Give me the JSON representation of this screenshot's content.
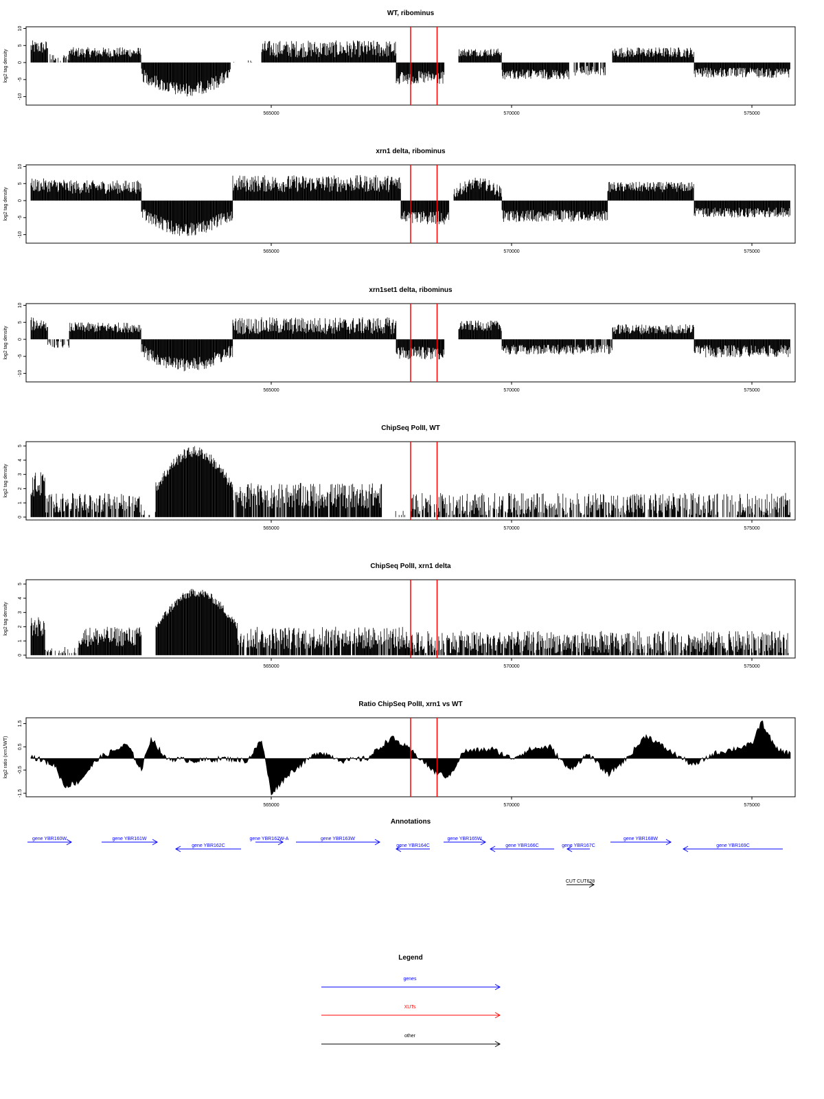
{
  "panels": [
    {
      "title": "WT, ribominus",
      "ylabel": "log2 tag density",
      "yticks": [
        "10",
        "5",
        "0",
        "-5",
        "-10"
      ],
      "xticks": [
        "565000",
        "570000",
        "575000"
      ]
    },
    {
      "title": "xrn1 delta, ribominus",
      "ylabel": "log2 tag density",
      "yticks": [
        "10",
        "5",
        "0",
        "-5",
        "-10"
      ],
      "xticks": [
        "565000",
        "570000",
        "575000"
      ]
    },
    {
      "title": "xrn1set1 delta, ribominus",
      "ylabel": "log2 tag density",
      "yticks": [
        "10",
        "5",
        "0",
        "-5",
        "-10"
      ],
      "xticks": [
        "565000",
        "570000",
        "575000"
      ]
    },
    {
      "title": "ChipSeq PolII, WT",
      "ylabel": "log2 tag density",
      "yticks": [
        "5",
        "4",
        "3",
        "2",
        "1",
        "0"
      ],
      "xticks": [
        "565000",
        "570000",
        "575000"
      ]
    },
    {
      "title": "ChipSeq PolII, xrn1 delta",
      "ylabel": "log2 tag density",
      "yticks": [
        "5",
        "4",
        "3",
        "2",
        "1",
        "0"
      ],
      "xticks": [
        "565000",
        "570000",
        "575000"
      ]
    },
    {
      "title": "Ratio ChipSeq PolII, xrn1 vs WT",
      "ylabel": "log2 ratio (xrn1/WT)",
      "yticks": [
        "1.5",
        "0.5",
        "-0.5",
        "-1.5"
      ],
      "xticks": [
        "565000",
        "570000",
        "575000"
      ]
    }
  ],
  "annotations": {
    "title": "Annotations",
    "genes": [
      {
        "label": "gene YBR160W"
      },
      {
        "label": "gene YBR161W"
      },
      {
        "label": "gene YBR162C"
      },
      {
        "label": "gene YBR162W-A"
      },
      {
        "label": "gene YBR163W"
      },
      {
        "label": "gene YBR164C"
      },
      {
        "label": "gene YBR165W"
      },
      {
        "label": "gene YBR166C"
      },
      {
        "label": "gene YBR167C"
      },
      {
        "label": "gene YBR168W"
      },
      {
        "label": "gene YBR169C"
      }
    ],
    "other": [
      {
        "label": "CUT CUT628"
      }
    ]
  },
  "legend": {
    "title": "Legend",
    "items": [
      {
        "label": "genes",
        "color": "#0000ff"
      },
      {
        "label": "XUTs",
        "color": "#ff0000"
      },
      {
        "label": "other",
        "color": "#000000"
      }
    ]
  },
  "colors": {
    "data": "#000000",
    "marker": "#ff0000",
    "gene": "#0000ff",
    "other": "#000000"
  },
  "chart_data": [
    {
      "type": "bar",
      "title": "WT, ribominus",
      "ylabel": "log2 tag density",
      "xlim": [
        559900,
        575900
      ],
      "ylim": [
        -12.5,
        10.5
      ],
      "marker_lines": [
        567900,
        568450
      ],
      "segments": [
        {
          "x0": 560000,
          "x1": 560350,
          "sign": 1,
          "amp": 4.5,
          "noise": 2.0
        },
        {
          "x0": 560350,
          "x1": 560800,
          "sign": 1,
          "amp": 1.5,
          "noise": 1.0,
          "sparse": 0.5
        },
        {
          "x0": 560800,
          "x1": 562300,
          "sign": 1,
          "amp": 3.0,
          "noise": 1.5
        },
        {
          "x0": 562300,
          "x1": 564150,
          "sign": -1,
          "amp": 8.0,
          "noise": 2.0,
          "shape": "arch"
        },
        {
          "x0": 564150,
          "x1": 564800,
          "sign": 1,
          "amp": 0.3,
          "noise": 0.5,
          "sparse": 0.9
        },
        {
          "x0": 564800,
          "x1": 567600,
          "sign": 1,
          "amp": 4.0,
          "noise": 2.5
        },
        {
          "x0": 567600,
          "x1": 568600,
          "sign": -1,
          "amp": 4.5,
          "noise": 2.0
        },
        {
          "x0": 568900,
          "x1": 569800,
          "sign": 1,
          "amp": 3.0,
          "noise": 1.2
        },
        {
          "x0": 569800,
          "x1": 571200,
          "sign": -1,
          "amp": 3.5,
          "noise": 1.5
        },
        {
          "x0": 571300,
          "x1": 571950,
          "sign": -1,
          "amp": 2.5,
          "noise": 1.5,
          "sparse": 0.3
        },
        {
          "x0": 572100,
          "x1": 573800,
          "sign": 1,
          "amp": 3.0,
          "noise": 1.5
        },
        {
          "x0": 573800,
          "x1": 575800,
          "sign": -1,
          "amp": 3.0,
          "noise": 1.5
        }
      ]
    },
    {
      "type": "bar",
      "title": "xrn1 delta, ribominus",
      "ylabel": "log2 tag density",
      "xlim": [
        559900,
        575900
      ],
      "ylim": [
        -12.5,
        10.5
      ],
      "marker_lines": [
        567900,
        568450
      ],
      "segments": [
        {
          "x0": 560000,
          "x1": 560700,
          "sign": 1,
          "amp": 4.5,
          "noise": 2.0
        },
        {
          "x0": 560700,
          "x1": 562300,
          "sign": 1,
          "amp": 4.0,
          "noise": 2.0
        },
        {
          "x0": 562300,
          "x1": 564200,
          "sign": -1,
          "amp": 8.5,
          "noise": 2.0,
          "shape": "arch"
        },
        {
          "x0": 564200,
          "x1": 567700,
          "sign": 1,
          "amp": 5.0,
          "noise": 2.5
        },
        {
          "x0": 567700,
          "x1": 568700,
          "sign": -1,
          "amp": 5.0,
          "noise": 2.0
        },
        {
          "x0": 568800,
          "x1": 569800,
          "sign": 1,
          "amp": 5.0,
          "noise": 1.8,
          "shape": "arch"
        },
        {
          "x0": 569800,
          "x1": 571300,
          "sign": -1,
          "amp": 4.5,
          "noise": 1.8
        },
        {
          "x0": 571300,
          "x1": 572000,
          "sign": -1,
          "amp": 4.5,
          "noise": 1.5
        },
        {
          "x0": 572000,
          "x1": 573800,
          "sign": 1,
          "amp": 4.0,
          "noise": 1.5
        },
        {
          "x0": 573800,
          "x1": 575800,
          "sign": -1,
          "amp": 3.5,
          "noise": 1.5
        }
      ]
    },
    {
      "type": "bar",
      "title": "xrn1set1 delta, ribominus",
      "ylabel": "log2 tag density",
      "xlim": [
        559900,
        575900
      ],
      "ylim": [
        -12.5,
        10.5
      ],
      "marker_lines": [
        567900,
        568450
      ],
      "segments": [
        {
          "x0": 560000,
          "x1": 560350,
          "sign": 1,
          "amp": 4.5,
          "noise": 2.0
        },
        {
          "x0": 560350,
          "x1": 560800,
          "sign": -1,
          "amp": 1.5,
          "noise": 1.0,
          "sparse": 0.6
        },
        {
          "x0": 560800,
          "x1": 562300,
          "sign": 1,
          "amp": 3.5,
          "noise": 1.5
        },
        {
          "x0": 562300,
          "x1": 564200,
          "sign": -1,
          "amp": 7.5,
          "noise": 2.0,
          "shape": "arch"
        },
        {
          "x0": 564200,
          "x1": 567600,
          "sign": 1,
          "amp": 4.0,
          "noise": 2.5
        },
        {
          "x0": 567600,
          "x1": 568600,
          "sign": -1,
          "amp": 4.0,
          "noise": 2.0
        },
        {
          "x0": 568900,
          "x1": 569800,
          "sign": 1,
          "amp": 4.0,
          "noise": 1.5
        },
        {
          "x0": 569800,
          "x1": 571300,
          "sign": -1,
          "amp": 3.0,
          "noise": 1.5
        },
        {
          "x0": 571300,
          "x1": 572100,
          "sign": -1,
          "amp": 3.0,
          "noise": 1.5,
          "sparse": 0.2
        },
        {
          "x0": 572100,
          "x1": 573800,
          "sign": 1,
          "amp": 3.0,
          "noise": 1.5
        },
        {
          "x0": 573800,
          "x1": 575800,
          "sign": -1,
          "amp": 3.5,
          "noise": 1.8
        }
      ]
    },
    {
      "type": "bar",
      "title": "ChipSeq PolII, WT",
      "ylabel": "log2 tag density",
      "xlim": [
        559900,
        575900
      ],
      "ylim": [
        -0.2,
        5.3
      ],
      "marker_lines": [
        567900,
        568450
      ],
      "segments": [
        {
          "x0": 560000,
          "x1": 560300,
          "sign": 1,
          "amp": 2.3,
          "noise": 0.9
        },
        {
          "x0": 560300,
          "x1": 562300,
          "sign": 1,
          "amp": 1.0,
          "noise": 0.7,
          "sparse": 0.2
        },
        {
          "x0": 562300,
          "x1": 562600,
          "sign": 1,
          "amp": 0.3,
          "noise": 0.3,
          "sparse": 0.8
        },
        {
          "x0": 562600,
          "x1": 564200,
          "sign": 1,
          "amp": 4.6,
          "noise": 0.4,
          "shape": "arch"
        },
        {
          "x0": 564200,
          "x1": 567300,
          "sign": 1,
          "amp": 1.5,
          "noise": 0.9,
          "sparse": 0.1
        },
        {
          "x0": 567300,
          "x1": 567900,
          "sign": 1,
          "amp": 0.2,
          "noise": 0.3,
          "sparse": 0.9
        },
        {
          "x0": 567900,
          "x1": 575800,
          "sign": 1,
          "amp": 0.9,
          "noise": 0.8,
          "sparse": 0.3
        }
      ]
    },
    {
      "type": "bar",
      "title": "ChipSeq PolII, xrn1 delta",
      "ylabel": "log2 tag density",
      "xlim": [
        559900,
        575900
      ],
      "ylim": [
        -0.2,
        5.3
      ],
      "marker_lines": [
        567900,
        568450
      ],
      "segments": [
        {
          "x0": 560000,
          "x1": 560300,
          "sign": 1,
          "amp": 2.0,
          "noise": 0.7
        },
        {
          "x0": 560300,
          "x1": 561000,
          "sign": 1,
          "amp": 0.3,
          "noise": 0.3,
          "sparse": 0.6
        },
        {
          "x0": 561000,
          "x1": 562300,
          "sign": 1,
          "amp": 1.3,
          "noise": 0.7
        },
        {
          "x0": 562600,
          "x1": 564300,
          "sign": 1,
          "amp": 4.4,
          "noise": 0.3,
          "shape": "arch"
        },
        {
          "x0": 564300,
          "x1": 567800,
          "sign": 1,
          "amp": 1.2,
          "noise": 0.8,
          "sparse": 0.1
        },
        {
          "x0": 567800,
          "x1": 575800,
          "sign": 1,
          "amp": 0.9,
          "noise": 0.8,
          "sparse": 0.2
        }
      ]
    },
    {
      "type": "area",
      "title": "Ratio ChipSeq PolII, xrn1 vs WT",
      "ylabel": "log2 ratio (xrn1/WT)",
      "xlim": [
        559900,
        575900
      ],
      "ylim": [
        -1.65,
        1.75
      ],
      "marker_lines": [
        567900,
        568450
      ],
      "points": [
        [
          560000,
          0.1
        ],
        [
          560500,
          -0.3
        ],
        [
          560700,
          -1.2
        ],
        [
          561000,
          -1.0
        ],
        [
          561400,
          0.0
        ],
        [
          562000,
          0.6
        ],
        [
          562300,
          -0.5
        ],
        [
          562500,
          0.9
        ],
        [
          562800,
          0.0
        ],
        [
          563500,
          -0.1
        ],
        [
          564000,
          0.0
        ],
        [
          564500,
          -0.1
        ],
        [
          564800,
          0.8
        ],
        [
          565000,
          -1.5
        ],
        [
          565400,
          -0.6
        ],
        [
          566000,
          0.3
        ],
        [
          566500,
          -0.1
        ],
        [
          567000,
          0.0
        ],
        [
          567500,
          0.9
        ],
        [
          567800,
          0.5
        ],
        [
          568100,
          0.0
        ],
        [
          568400,
          -0.6
        ],
        [
          568700,
          -0.8
        ],
        [
          569000,
          0.3
        ],
        [
          569600,
          0.4
        ],
        [
          570000,
          0.0
        ],
        [
          570400,
          0.4
        ],
        [
          570800,
          0.5
        ],
        [
          571200,
          -0.5
        ],
        [
          571600,
          0.2
        ],
        [
          572000,
          -0.7
        ],
        [
          572400,
          0.0
        ],
        [
          572800,
          1.0
        ],
        [
          573300,
          0.3
        ],
        [
          573800,
          -0.3
        ],
        [
          574200,
          0.2
        ],
        [
          574600,
          0.4
        ],
        [
          575000,
          0.6
        ],
        [
          575200,
          1.6
        ],
        [
          575500,
          0.4
        ],
        [
          575800,
          0.2
        ]
      ]
    }
  ]
}
